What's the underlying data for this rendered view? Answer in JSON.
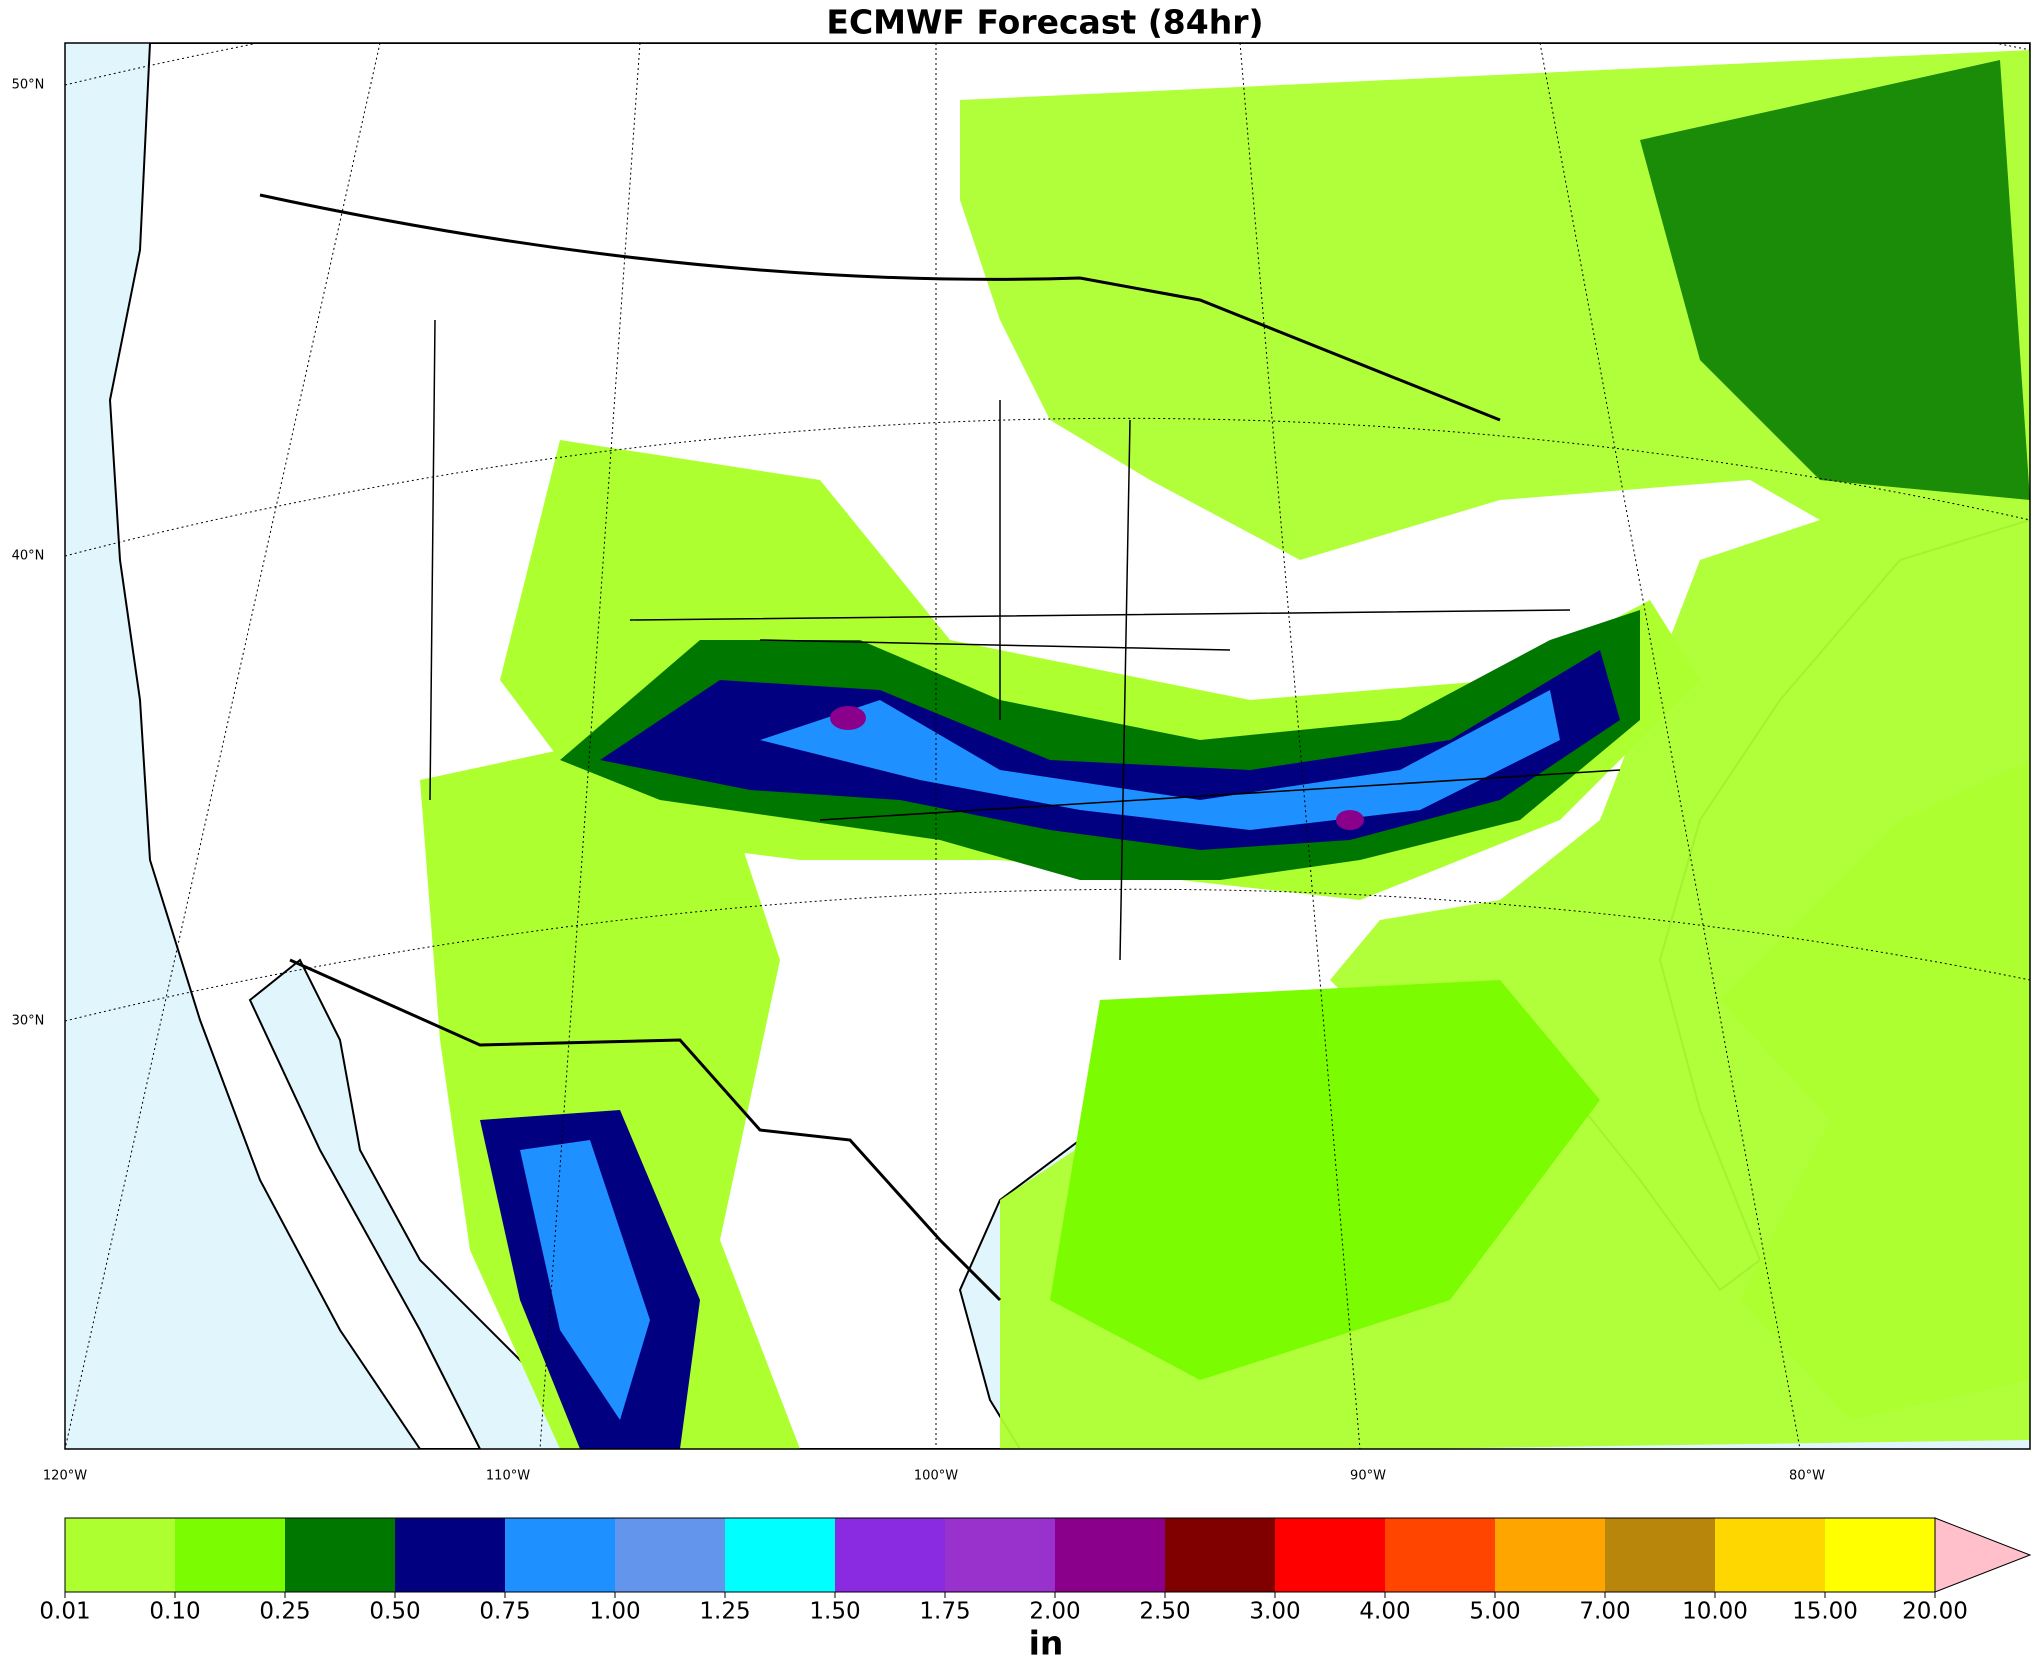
{
  "title": "ECMWF Forecast (84hr)",
  "lat_labels": [
    "50°N",
    "40°N",
    "30°N"
  ],
  "lon_labels": [
    "120°W",
    "110°W",
    "100°W",
    "90°W",
    "80°W"
  ],
  "colorbar": {
    "levels": [
      "0.01",
      "0.10",
      "0.25",
      "0.50",
      "0.75",
      "1.00",
      "1.25",
      "1.50",
      "1.75",
      "2.00",
      "2.50",
      "3.00",
      "4.00",
      "5.00",
      "7.00",
      "10.00",
      "15.00",
      "20.00"
    ],
    "colors": [
      "#adff2f",
      "#7cfc00",
      "#007800",
      "#000080",
      "#1e90ff",
      "#6495ed",
      "#00ffff",
      "#8a2be2",
      "#9932cc",
      "#8b008b",
      "#800000",
      "#ff0000",
      "#ff4500",
      "#ffa500",
      "#b8860b",
      "#ffd700",
      "#ffff00"
    ],
    "extend_color": "#ffc0cb",
    "unit": "in"
  }
}
